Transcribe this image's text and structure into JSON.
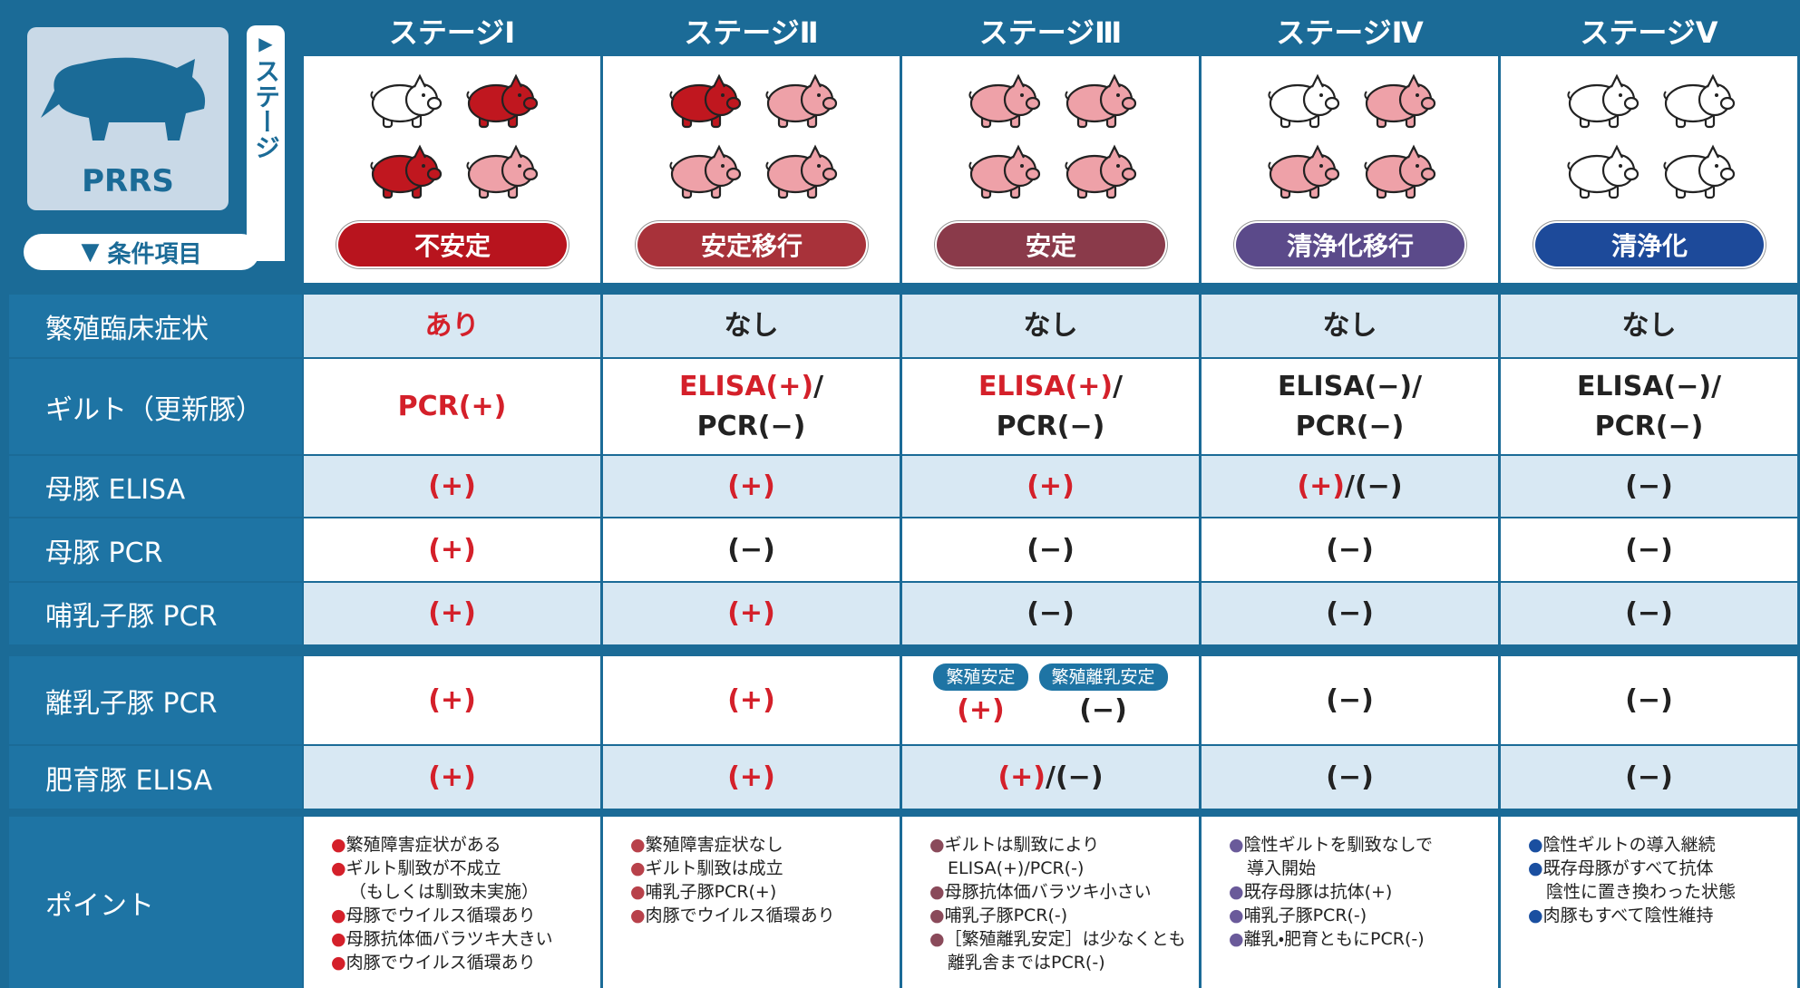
{
  "header": {
    "logo": "PRRS",
    "stage_caption": "ステージ",
    "condition_caption": "条件項目"
  },
  "stages": [
    {
      "name": "ステージⅠ",
      "status": "不安定",
      "status_color": "#b8141e",
      "pigs": [
        "#ffffff",
        "#c0171f",
        "#c0171f",
        "#eea1a8"
      ]
    },
    {
      "name": "ステージⅡ",
      "status": "安定移行",
      "status_color": "#a8323a",
      "pigs": [
        "#c0171f",
        "#eea1a8",
        "#eea1a8",
        "#eea1a8"
      ]
    },
    {
      "name": "ステージⅢ",
      "status": "安定",
      "status_color": "#8a3a4a",
      "pigs": [
        "#eea1a8",
        "#eea1a8",
        "#eea1a8",
        "#eea1a8"
      ]
    },
    {
      "name": "ステージⅣ",
      "status": "清浄化移行",
      "status_color": "#5b4a8a",
      "pigs": [
        "#ffffff",
        "#eea1a8",
        "#eea1a8",
        "#eea1a8"
      ]
    },
    {
      "name": "ステージⅤ",
      "status": "清浄化",
      "status_color": "#1d4a9a",
      "pigs": [
        "#ffffff",
        "#ffffff",
        "#ffffff",
        "#ffffff"
      ]
    }
  ],
  "rows": [
    {
      "label": "繁殖臨床症状",
      "cells": [
        [
          [
            {
              "text": "あり",
              "color": "#d4202a"
            }
          ]
        ],
        [
          [
            "なし"
          ]
        ],
        [
          [
            "なし"
          ]
        ],
        [
          [
            "なし"
          ]
        ],
        [
          [
            "なし"
          ]
        ]
      ]
    },
    {
      "label": "ギルト（更新豚）",
      "cells": [
        [
          [
            {
              "text": "PCR(+)",
              "color": "#d4202a"
            }
          ]
        ],
        [
          [
            {
              "text": "ELISA(+)",
              "color": "#d4202a"
            },
            "/"
          ],
          [
            "PCR(−)"
          ]
        ],
        [
          [
            {
              "text": "ELISA(+)",
              "color": "#d4202a"
            },
            "/"
          ],
          [
            "PCR(−)"
          ]
        ],
        [
          [
            "ELISA(−)/"
          ],
          [
            "PCR(−)"
          ]
        ],
        [
          [
            "ELISA(−)/"
          ],
          [
            "PCR(−)"
          ]
        ]
      ]
    },
    {
      "label": "母豚 ELISA",
      "cells": [
        [
          [
            {
              "text": "(+)",
              "color": "#d4202a"
            }
          ]
        ],
        [
          [
            {
              "text": "(+)",
              "color": "#d4202a"
            }
          ]
        ],
        [
          [
            {
              "text": "(+)",
              "color": "#d4202a"
            }
          ]
        ],
        [
          [
            {
              "text": "(+)",
              "color": "#d4202a"
            },
            "/(−)"
          ]
        ],
        [
          [
            "(−)"
          ]
        ]
      ]
    },
    {
      "label": "母豚 PCR",
      "cells": [
        [
          [
            {
              "text": "(+)",
              "color": "#d4202a"
            }
          ]
        ],
        [
          [
            "(−)"
          ]
        ],
        [
          [
            "(−)"
          ]
        ],
        [
          [
            "(−)"
          ]
        ],
        [
          [
            "(−)"
          ]
        ]
      ]
    },
    {
      "label": "哺乳子豚 PCR",
      "cells": [
        [
          [
            {
              "text": "(+)",
              "color": "#d4202a"
            }
          ]
        ],
        [
          [
            {
              "text": "(+)",
              "color": "#d4202a"
            }
          ]
        ],
        [
          [
            "(−)"
          ]
        ],
        [
          [
            "(−)"
          ]
        ],
        [
          [
            "(−)"
          ]
        ]
      ]
    },
    {
      "label": "離乳子豚 PCR",
      "cells": [
        [
          [
            {
              "text": "(+)",
              "color": "#d4202a"
            }
          ]
        ],
        [
          [
            {
              "text": "(+)",
              "color": "#d4202a"
            }
          ]
        ],
        {
          "split": [
            {
              "badge": "繁殖安定",
              "lines": [
                [
                  {
                    "text": "(+)",
                    "color": "#d4202a"
                  }
                ]
              ]
            },
            {
              "badge": "繁殖離乳安定",
              "lines": [
                [
                  "(−)"
                ]
              ]
            }
          ]
        },
        [
          [
            "(−)"
          ]
        ],
        [
          [
            "(−)"
          ]
        ]
      ]
    },
    {
      "label": "肥育豚 ELISA",
      "cells": [
        [
          [
            {
              "text": "(+)",
              "color": "#d4202a"
            }
          ]
        ],
        [
          [
            {
              "text": "(+)",
              "color": "#d4202a"
            }
          ]
        ],
        [
          [
            {
              "text": "(+)",
              "color": "#d4202a"
            },
            "/(−)"
          ]
        ],
        [
          [
            "(−)"
          ]
        ],
        [
          [
            "(−)"
          ]
        ]
      ]
    }
  ],
  "points": {
    "label": "ポイント",
    "columns": [
      {
        "bullet_color": "#d4202a",
        "items": [
          [
            "繁殖障害症状がある"
          ],
          [
            "ギルト馴致が不成立",
            "（もしくは馴致未実施）"
          ],
          [
            "母豚でウイルス循環あり"
          ],
          [
            "母豚抗体価バラツキ大きい"
          ],
          [
            "肉豚でウイルス循環あり"
          ]
        ]
      },
      {
        "bullet_color": "#b8414a",
        "items": [
          [
            "繁殖障害症状なし"
          ],
          [
            "ギルト馴致は成立"
          ],
          [
            "哺乳子豚PCR(+)"
          ],
          [
            "肉豚でウイルス循環あり"
          ]
        ]
      },
      {
        "bullet_color": "#8a4a5a",
        "items": [
          [
            "ギルトは馴致により",
            "ELISA(+)/PCR(-)"
          ],
          [
            "母豚抗体価バラツキ小さい"
          ],
          [
            "哺乳子豚PCR(-)"
          ],
          [
            "［繁殖離乳安定］は少なくとも",
            "離乳舎まではPCR(-)"
          ]
        ]
      },
      {
        "bullet_color": "#6a5a9a",
        "items": [
          [
            "陰性ギルトを馴致なしで",
            "導入開始"
          ],
          [
            "既存母豚は抗体(+)"
          ],
          [
            "哺乳子豚PCR(-)"
          ],
          [
            "離乳・肥育ともにPCR(-)"
          ]
        ]
      },
      {
        "bullet_color": "#1a4fa0",
        "items": [
          [
            "陰性ギルトの導入継続"
          ],
          [
            "既存母豚がすべて抗体",
            "陰性に置き換わった状態"
          ],
          [
            "肉豚もすべて陰性維持"
          ]
        ]
      }
    ]
  }
}
